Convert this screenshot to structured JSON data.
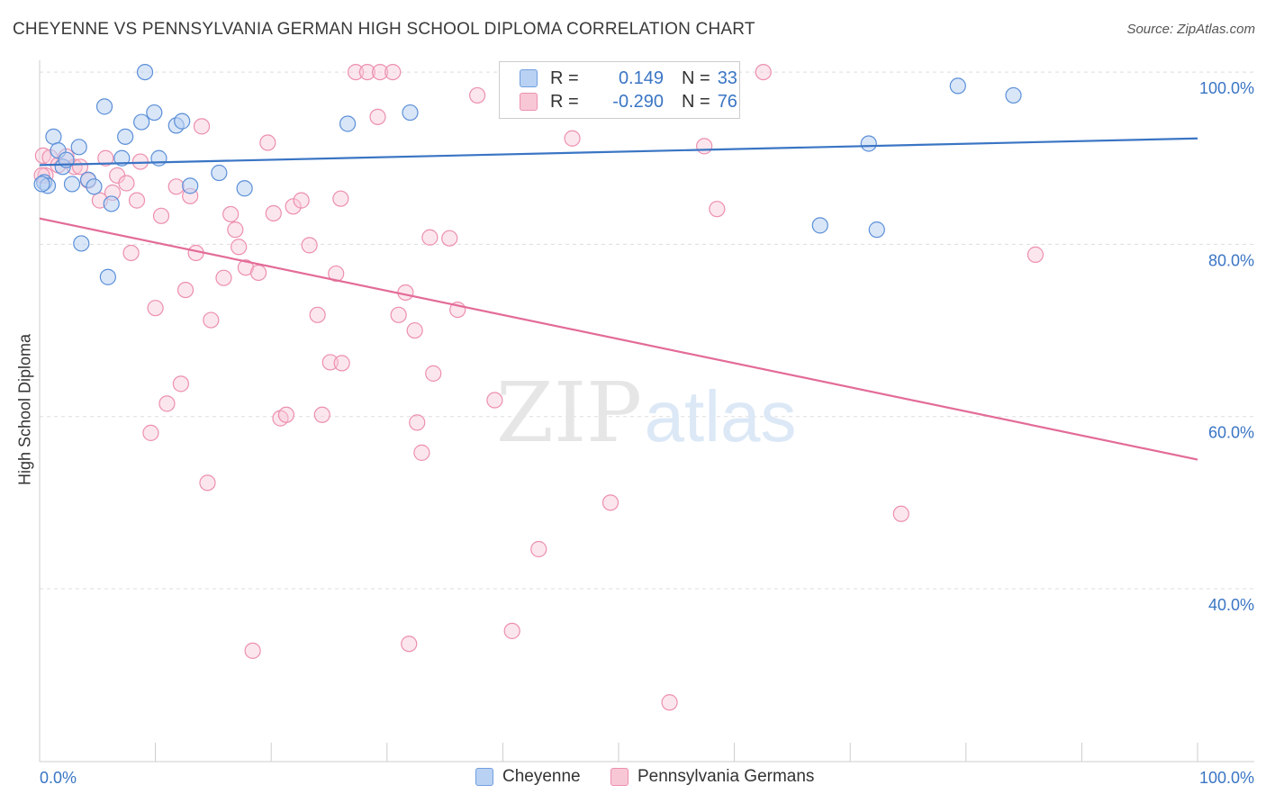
{
  "title": "CHEYENNE VS PENNSYLVANIA GERMAN HIGH SCHOOL DIPLOMA CORRELATION CHART",
  "source": "Source: ZipAtlas.com",
  "watermark": {
    "zip": "ZIP",
    "atlas": "atlas"
  },
  "legend": {
    "rows": [
      {
        "r_label": "R =",
        "r_value": "0.149",
        "n_label": "N =",
        "n_value": "33"
      },
      {
        "r_label": "R =",
        "r_value": "-0.290",
        "n_label": "N =",
        "n_value": "76"
      }
    ]
  },
  "bottom_legend": [
    "Cheyenne",
    "Pennsylvania Germans"
  ],
  "colors": {
    "blue": "#3a75c4",
    "blue_fill": "#b9d1f3",
    "pink": "#e36b98",
    "pink_fill": "#f8c7d6",
    "tick_text": "#3a75c4"
  },
  "chart_data": {
    "type": "scatter",
    "xlabel": "",
    "ylabel": "High School Diploma",
    "xlim": [
      0,
      100
    ],
    "ylim": [
      17,
      100
    ],
    "x_tick_labels": [
      "0.0%",
      "100.0%"
    ],
    "y_ticks": [
      40,
      60,
      80,
      100
    ],
    "y_tick_labels": [
      "40.0%",
      "60.0%",
      "80.0%",
      "100.0%"
    ],
    "grid": true,
    "series": [
      {
        "name": "Cheyenne",
        "trend": [
          [
            0,
            89.2
          ],
          [
            100,
            92.3
          ]
        ],
        "points": [
          [
            0.4,
            87.2
          ],
          [
            0.7,
            86.8
          ],
          [
            1.2,
            92.5
          ],
          [
            1.6,
            90.9
          ],
          [
            2.0,
            89.0
          ],
          [
            2.3,
            89.8
          ],
          [
            2.8,
            87.0
          ],
          [
            3.4,
            91.3
          ],
          [
            3.6,
            80.1
          ],
          [
            4.2,
            87.5
          ],
          [
            4.7,
            86.7
          ],
          [
            5.6,
            96.0
          ],
          [
            5.9,
            76.2
          ],
          [
            6.2,
            84.7
          ],
          [
            7.1,
            90.0
          ],
          [
            7.4,
            92.5
          ],
          [
            8.8,
            94.2
          ],
          [
            9.1,
            100.0
          ],
          [
            9.9,
            95.3
          ],
          [
            10.3,
            90.0
          ],
          [
            11.8,
            93.8
          ],
          [
            12.3,
            94.3
          ],
          [
            13.0,
            86.8
          ],
          [
            15.5,
            88.3
          ],
          [
            17.7,
            86.5
          ],
          [
            26.6,
            94.0
          ],
          [
            32.0,
            95.3
          ],
          [
            67.4,
            82.2
          ],
          [
            71.6,
            91.7
          ],
          [
            72.3,
            81.7
          ],
          [
            79.3,
            98.4
          ],
          [
            84.1,
            97.3
          ],
          [
            0.2,
            87.0
          ]
        ]
      },
      {
        "name": "Pennsylvania Germans",
        "trend": [
          [
            0,
            83.0
          ],
          [
            100,
            55.0
          ]
        ],
        "points": [
          [
            0.3,
            90.3
          ],
          [
            0.5,
            88.0
          ],
          [
            0.9,
            90.1
          ],
          [
            1.6,
            89.2
          ],
          [
            2.3,
            90.2
          ],
          [
            3.0,
            89.0
          ],
          [
            3.5,
            89.0
          ],
          [
            4.2,
            87.4
          ],
          [
            5.2,
            85.1
          ],
          [
            5.7,
            90.0
          ],
          [
            6.3,
            86.0
          ],
          [
            6.7,
            88.0
          ],
          [
            7.5,
            87.1
          ],
          [
            7.9,
            79.0
          ],
          [
            8.4,
            85.1
          ],
          [
            8.7,
            89.6
          ],
          [
            9.6,
            58.1
          ],
          [
            10.0,
            72.6
          ],
          [
            10.5,
            83.3
          ],
          [
            11.0,
            61.5
          ],
          [
            11.8,
            86.7
          ],
          [
            12.2,
            63.8
          ],
          [
            12.6,
            74.7
          ],
          [
            13.0,
            85.6
          ],
          [
            13.5,
            79.0
          ],
          [
            14.0,
            93.7
          ],
          [
            14.5,
            52.3
          ],
          [
            14.8,
            71.2
          ],
          [
            15.9,
            76.1
          ],
          [
            16.5,
            83.5
          ],
          [
            16.9,
            81.7
          ],
          [
            17.2,
            79.7
          ],
          [
            17.8,
            77.3
          ],
          [
            18.4,
            32.8
          ],
          [
            18.9,
            76.7
          ],
          [
            19.7,
            91.8
          ],
          [
            20.2,
            83.6
          ],
          [
            20.8,
            59.8
          ],
          [
            21.3,
            60.2
          ],
          [
            21.9,
            84.4
          ],
          [
            22.6,
            85.1
          ],
          [
            23.3,
            79.9
          ],
          [
            24.0,
            71.8
          ],
          [
            24.4,
            60.2
          ],
          [
            25.1,
            66.3
          ],
          [
            25.6,
            76.6
          ],
          [
            26.0,
            85.3
          ],
          [
            26.1,
            66.2
          ],
          [
            27.3,
            100.0
          ],
          [
            28.3,
            100.0
          ],
          [
            29.2,
            94.8
          ],
          [
            29.4,
            100.0
          ],
          [
            30.5,
            100.0
          ],
          [
            31.0,
            71.8
          ],
          [
            31.6,
            74.4
          ],
          [
            31.9,
            33.6
          ],
          [
            32.4,
            70.0
          ],
          [
            32.6,
            59.3
          ],
          [
            33.0,
            55.8
          ],
          [
            33.7,
            80.8
          ],
          [
            34.0,
            65.0
          ],
          [
            35.4,
            80.7
          ],
          [
            36.1,
            72.4
          ],
          [
            37.8,
            97.3
          ],
          [
            39.3,
            61.9
          ],
          [
            40.8,
            35.1
          ],
          [
            43.1,
            44.6
          ],
          [
            46.0,
            92.3
          ],
          [
            49.3,
            50.0
          ],
          [
            54.4,
            26.8
          ],
          [
            57.4,
            91.4
          ],
          [
            58.5,
            84.1
          ],
          [
            62.5,
            100.0
          ],
          [
            74.4,
            48.7
          ],
          [
            86.0,
            78.8
          ],
          [
            0.2,
            88.0
          ]
        ]
      }
    ]
  }
}
